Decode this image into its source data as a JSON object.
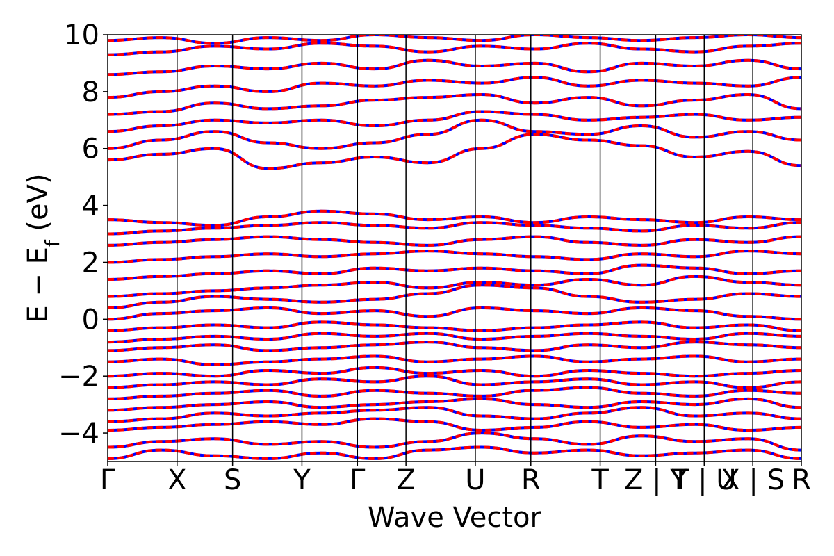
{
  "chart_data": {
    "type": "line",
    "xlabel": "Wave Vector",
    "ylabel": "E − E",
    "ylabel_subscript": "f",
    "ylabel_unit": " (eV)",
    "ylim": [
      -5,
      10
    ],
    "y_ticks": [
      -4,
      -2,
      0,
      2,
      4,
      6,
      8,
      10
    ],
    "y_tick_labels": [
      "−4",
      "−2",
      "0",
      "2",
      "4",
      "6",
      "8",
      "10"
    ],
    "xlim": [
      0,
      10
    ],
    "k_points": [
      {
        "label": "Γ",
        "x": 0
      },
      {
        "label": "X",
        "x": 1.0
      },
      {
        "label": "S",
        "x": 1.8
      },
      {
        "label": "Y",
        "x": 2.8
      },
      {
        "label": "Γ",
        "x": 3.6
      },
      {
        "label": "Z",
        "x": 4.3
      },
      {
        "label": "U",
        "x": 5.3
      },
      {
        "label": "R",
        "x": 6.1
      },
      {
        "label": "T",
        "x": 7.1
      },
      {
        "label": "Z | Y",
        "x": 7.9
      },
      {
        "label": "T | U",
        "x": 8.6
      },
      {
        "label": "X | S",
        "x": 9.3
      },
      {
        "label": "R",
        "x": 10.0
      }
    ],
    "grid": false,
    "colors": {
      "bands_primary": "#ff0000",
      "bands_dashed": "#0000ff",
      "vlines": "#000000"
    },
    "series": [
      {
        "values": [
          -4.9,
          -4.6,
          -4.8,
          -4.9,
          -4.7,
          -4.9,
          -4.6,
          -4.5,
          -4.7,
          -4.6,
          -4.8,
          -4.7,
          -4.6,
          -4.9
        ]
      },
      {
        "values": [
          -4.5,
          -4.3,
          -4.2,
          -4.4,
          -4.3,
          -4.5,
          -4.3,
          -4.0,
          -4.2,
          -4.4,
          -4.1,
          -4.3,
          -4.2,
          -4.6
        ]
      },
      {
        "values": [
          -3.9,
          -3.8,
          -3.7,
          -3.6,
          -3.7,
          -3.5,
          -3.6,
          -3.9,
          -3.8,
          -3.6,
          -3.8,
          -3.7,
          -3.9,
          -3.8
        ]
      },
      {
        "values": [
          -3.6,
          -3.5,
          -3.3,
          -3.4,
          -3.3,
          -3.2,
          -3.1,
          -3.4,
          -3.5,
          -3.3,
          -3.1,
          -3.4,
          -3.3,
          -3.5
        ]
      },
      {
        "values": [
          -3.2,
          -3.1,
          -3.0,
          -2.9,
          -3.1,
          -3.0,
          -2.9,
          -2.8,
          -3.0,
          -3.1,
          -2.9,
          -3.0,
          -2.8,
          -3.1
        ]
      },
      {
        "values": [
          -2.8,
          -2.7,
          -2.6,
          -2.5,
          -2.7,
          -2.5,
          -2.6,
          -2.7,
          -2.5,
          -2.4,
          -2.6,
          -2.7,
          -2.5,
          -2.6
        ]
      },
      {
        "values": [
          -2.4,
          -2.3,
          -2.2,
          -2.3,
          -2.1,
          -2.2,
          -2.0,
          -2.3,
          -2.2,
          -2.1,
          -2.3,
          -2.2,
          -2.4,
          -2.2
        ]
      },
      {
        "values": [
          -2.0,
          -1.9,
          -2.0,
          -1.8,
          -1.9,
          -1.7,
          -1.9,
          -1.8,
          -2.0,
          -1.8,
          -1.9,
          -2.0,
          -1.9,
          -1.8
        ]
      },
      {
        "values": [
          -1.5,
          -1.4,
          -1.6,
          -1.5,
          -1.4,
          -1.3,
          -1.5,
          -1.4,
          -1.3,
          -1.5,
          -1.4,
          -1.3,
          -1.5,
          -1.4
        ]
      },
      {
        "values": [
          -1.1,
          -1.0,
          -0.9,
          -1.1,
          -1.0,
          -0.9,
          -0.8,
          -1.0,
          -1.1,
          -0.9,
          -1.0,
          -0.8,
          -0.9,
          -1.0
        ]
      },
      {
        "values": [
          -0.8,
          -0.7,
          -0.6,
          -0.7,
          -0.5,
          -0.6,
          -0.5,
          -0.7,
          -0.6,
          -0.5,
          -0.6,
          -0.7,
          -0.5,
          -0.6
        ]
      },
      {
        "values": [
          -0.4,
          -0.3,
          -0.2,
          -0.3,
          -0.1,
          -0.2,
          -0.3,
          -0.4,
          -0.3,
          -0.2,
          -0.1,
          -0.3,
          -0.2,
          -0.4
        ]
      },
      {
        "values": [
          0.0,
          0.2,
          0.3,
          0.4,
          0.2,
          0.3,
          0.1,
          0.4,
          0.3,
          0.2,
          0.4,
          0.3,
          0.1,
          0.0
        ]
      },
      {
        "values": [
          0.4,
          0.6,
          0.8,
          0.7,
          0.6,
          0.7,
          0.9,
          1.2,
          1.1,
          0.8,
          0.6,
          0.7,
          0.9,
          0.8
        ]
      },
      {
        "values": [
          0.8,
          0.9,
          1.0,
          1.1,
          1.2,
          1.3,
          1.1,
          1.3,
          1.2,
          1.4,
          1.2,
          1.5,
          1.3,
          1.2
        ]
      },
      {
        "values": [
          1.4,
          1.5,
          1.6,
          1.7,
          1.6,
          1.8,
          1.7,
          1.8,
          1.7,
          1.6,
          1.9,
          1.8,
          1.6,
          1.7
        ]
      },
      {
        "values": [
          2.0,
          2.1,
          2.2,
          2.3,
          2.2,
          2.3,
          2.4,
          2.3,
          2.2,
          2.1,
          2.3,
          2.2,
          2.4,
          2.3
        ]
      },
      {
        "values": [
          2.6,
          2.7,
          2.8,
          2.9,
          2.8,
          2.7,
          2.6,
          2.8,
          2.9,
          2.7,
          2.6,
          2.8,
          2.7,
          2.9
        ]
      },
      {
        "values": [
          3.0,
          3.1,
          3.2,
          3.3,
          3.4,
          3.3,
          3.2,
          3.4,
          3.3,
          3.2,
          3.1,
          3.3,
          3.2,
          3.4
        ]
      },
      {
        "values": [
          3.5,
          3.4,
          3.3,
          3.6,
          3.8,
          3.7,
          3.5,
          3.6,
          3.4,
          3.6,
          3.5,
          3.4,
          3.6,
          3.5
        ]
      },
      {
        "values": [
          5.6,
          5.8,
          6.0,
          5.3,
          5.5,
          5.7,
          5.5,
          6.0,
          6.5,
          6.3,
          6.1,
          5.7,
          5.9,
          5.4
        ]
      },
      {
        "values": [
          6.0,
          6.3,
          6.6,
          6.2,
          6.0,
          6.2,
          6.5,
          7.0,
          6.6,
          6.5,
          6.8,
          6.4,
          6.6,
          6.3
        ]
      },
      {
        "values": [
          6.6,
          6.8,
          7.0,
          6.9,
          7.0,
          6.8,
          7.0,
          7.3,
          7.2,
          7.0,
          7.1,
          7.2,
          7.0,
          7.1
        ]
      },
      {
        "values": [
          7.2,
          7.3,
          7.6,
          7.4,
          7.5,
          7.7,
          7.8,
          7.9,
          7.6,
          7.8,
          7.5,
          7.7,
          7.9,
          7.4
        ]
      },
      {
        "values": [
          7.8,
          8.0,
          8.2,
          8.0,
          8.3,
          8.2,
          8.4,
          8.3,
          8.5,
          8.2,
          8.4,
          8.3,
          8.2,
          8.5
        ]
      },
      {
        "values": [
          8.6,
          8.7,
          8.9,
          8.8,
          9.0,
          8.8,
          9.1,
          8.9,
          9.0,
          8.7,
          9.0,
          8.9,
          9.1,
          8.8
        ]
      },
      {
        "values": [
          9.3,
          9.4,
          9.6,
          9.5,
          9.7,
          9.6,
          9.4,
          9.6,
          9.5,
          9.7,
          9.5,
          9.4,
          9.6,
          9.7
        ]
      },
      {
        "values": [
          9.8,
          9.9,
          9.7,
          9.9,
          9.8,
          10.0,
          9.9,
          9.8,
          10.0,
          9.9,
          9.8,
          9.9,
          10.0,
          9.9
        ]
      }
    ]
  }
}
